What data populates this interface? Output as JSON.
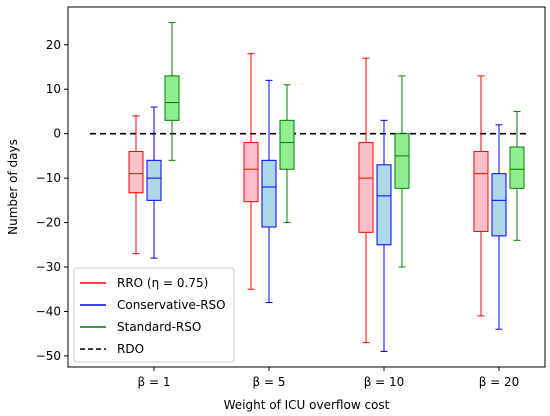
{
  "chart_data": {
    "type": "boxplot",
    "xlabel": "Weight of ICU overflow cost",
    "ylabel": "Number of days",
    "ylim": [
      -52.5,
      28.5
    ],
    "yticks": [
      20,
      10,
      0,
      -10,
      -20,
      -30,
      -40,
      -50
    ],
    "categories": [
      "β = 1",
      "β = 5",
      "β = 10",
      "β = 20"
    ],
    "legend_position": "lower-left",
    "grid": false,
    "series": [
      {
        "name": "RRO (η = 0.75)",
        "color": "#ff0000",
        "fill": "#ffc0cb",
        "boxes": [
          {
            "whisker_low": -27,
            "q1": -13.3,
            "median": -9,
            "q3": -4,
            "whisker_high": 4
          },
          {
            "whisker_low": -35,
            "q1": -15.3,
            "median": -8,
            "q3": -2,
            "whisker_high": 18
          },
          {
            "whisker_low": -47,
            "q1": -22.2,
            "median": -10,
            "q3": -2,
            "whisker_high": 17
          },
          {
            "whisker_low": -41,
            "q1": -22,
            "median": -9,
            "q3": -4,
            "whisker_high": 13
          }
        ]
      },
      {
        "name": "Conservative-RSO",
        "color": "#0000ff",
        "fill": "#add8e6",
        "boxes": [
          {
            "whisker_low": -28,
            "q1": -15,
            "median": -10,
            "q3": -6,
            "whisker_high": 6
          },
          {
            "whisker_low": -38,
            "q1": -21,
            "median": -12,
            "q3": -6,
            "whisker_high": 12
          },
          {
            "whisker_low": -49,
            "q1": -25,
            "median": -14,
            "q3": -7,
            "whisker_high": 3
          },
          {
            "whisker_low": -44,
            "q1": -23,
            "median": -15,
            "q3": -9,
            "whisker_high": 2
          }
        ]
      },
      {
        "name": "Standard-RSO",
        "color": "#008000",
        "fill": "#90ee90",
        "boxes": [
          {
            "whisker_low": -6,
            "q1": 3,
            "median": 7,
            "q3": 13,
            "whisker_high": 25
          },
          {
            "whisker_low": -20,
            "q1": -8,
            "median": -2,
            "q3": 3,
            "whisker_high": 11
          },
          {
            "whisker_low": -30,
            "q1": -12.3,
            "median": -5,
            "q3": 0,
            "whisker_high": 13
          },
          {
            "whisker_low": -24,
            "q1": -12.3,
            "median": -8,
            "q3": -3,
            "whisker_high": 5
          }
        ]
      }
    ],
    "reference_line": {
      "name": "RDO",
      "y": 0,
      "color": "#000000",
      "style": "dashed"
    }
  },
  "legend": {
    "rro": "RRO (η = 0.75)",
    "conservative": "Conservative-RSO",
    "standard": "Standard-RSO",
    "rdo": "RDO"
  }
}
